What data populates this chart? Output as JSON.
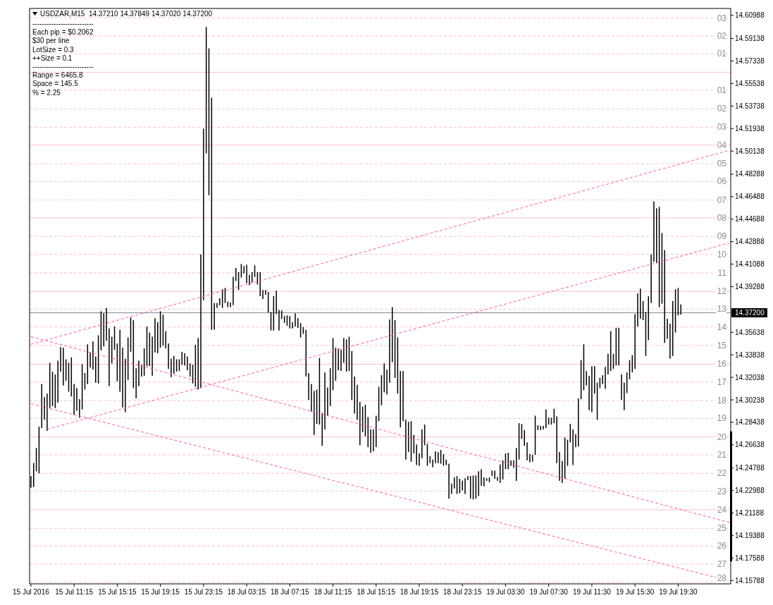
{
  "chart_data": {
    "type": "bar",
    "title": "USDZAR,M15  14.37210 14.37849 14.37020 14.37200",
    "annotations": [
      "--------------------------",
      "Each pip = $0.2062",
      "$30 per line",
      "LotSize = 0.3",
      "++Size = 0.1",
      "--------------------------",
      "Range = 6465.8",
      "Space = 145.5",
      "% = 2.25",
      {
        "text": "03",
        "y": 14.6077
      },
      {
        "text": "02",
        "y": 14.5934
      },
      {
        "text": "01",
        "y": 14.5792
      },
      {
        "text": "01",
        "y": 14.55
      },
      {
        "text": "02",
        "y": 14.5352
      },
      {
        "text": "03",
        "y": 14.5204
      },
      {
        "text": "04",
        "y": 14.5061
      },
      {
        "text": "05",
        "y": 14.4913
      },
      {
        "text": "06",
        "y": 14.477
      },
      {
        "text": "07",
        "y": 14.4622
      },
      {
        "text": "08",
        "y": 14.4479
      },
      {
        "text": "09",
        "y": 14.4331
      },
      {
        "text": "10",
        "y": 14.4188
      },
      {
        "text": "11",
        "y": 14.404
      },
      {
        "text": "12",
        "y": 14.3891
      },
      {
        "text": "13",
        "y": 14.3749
      },
      {
        "text": "14",
        "y": 14.3606
      },
      {
        "text": "15",
        "y": 14.3458
      },
      {
        "text": "16",
        "y": 14.3309
      },
      {
        "text": "17",
        "y": 14.3166
      },
      {
        "text": "18",
        "y": 14.3018
      },
      {
        "text": "19",
        "y": 14.2875
      },
      {
        "text": "20",
        "y": 14.2727
      },
      {
        "text": "21",
        "y": 14.2584
      },
      {
        "text": "22",
        "y": 14.2436
      },
      {
        "text": "23",
        "y": 14.2293
      },
      {
        "text": "24",
        "y": 14.2145
      },
      {
        "text": "25",
        "y": 14.1996
      },
      {
        "text": "26",
        "y": 14.1854
      },
      {
        "text": "27",
        "y": 14.1711
      },
      {
        "text": "28",
        "y": 14.1568
      }
    ],
    "categories": [
      "15 Jul 2016",
      null,
      null,
      null,
      null,
      null,
      null,
      null,
      null,
      null,
      null,
      null,
      null,
      null,
      null,
      null,
      "15 Jul 11:15",
      null,
      null,
      null,
      null,
      null,
      null,
      null,
      null,
      null,
      null,
      null,
      null,
      null,
      null,
      null,
      "15 Jul 15:15",
      null,
      null,
      null,
      null,
      null,
      null,
      null,
      null,
      null,
      null,
      null,
      null,
      null,
      null,
      null,
      "15 Jul 19:15",
      null,
      null,
      null,
      null,
      null,
      null,
      null,
      null,
      null,
      null,
      null,
      null,
      null,
      null,
      null,
      "15 Jul 23:15",
      null,
      null,
      null,
      null,
      null,
      null,
      null,
      null,
      null,
      null,
      null,
      null,
      null,
      null,
      null,
      "18 Jul 03:15",
      null,
      null,
      null,
      null,
      null,
      null,
      null,
      null,
      null,
      null,
      null,
      null,
      null,
      null,
      null,
      "18 Jul 07:15",
      null,
      null,
      null,
      null,
      null,
      null,
      null,
      null,
      null,
      null,
      null,
      null,
      null,
      null,
      null,
      "18 Jul 11:15",
      null,
      null,
      null,
      null,
      null,
      null,
      null,
      null,
      null,
      null,
      null,
      null,
      null,
      null,
      null,
      "18 Jul 15:15",
      null,
      null,
      null,
      null,
      null,
      null,
      null,
      null,
      null,
      null,
      null,
      null,
      null,
      null,
      null,
      "18 Jul 19:15",
      null,
      null,
      null,
      null,
      null,
      null,
      null,
      null,
      null,
      null,
      null,
      null,
      null,
      null,
      null,
      "18 Jul 23:15",
      null,
      null,
      null,
      null,
      null,
      null,
      null,
      null,
      null,
      null,
      null,
      null,
      null,
      null,
      null,
      "19 Jul 03:30",
      null,
      null,
      null,
      null,
      null,
      null,
      null,
      null,
      null,
      null,
      null,
      null,
      null,
      null,
      null,
      "19 Jul 07:30",
      null,
      null,
      null,
      null,
      null,
      null,
      null,
      null,
      null,
      null,
      null,
      null,
      null,
      null,
      null,
      "19 Jul 11:30",
      null,
      null,
      null,
      null,
      null,
      null,
      null,
      null,
      null,
      null,
      null,
      null,
      null,
      null,
      null,
      "19 Jul 15:30",
      null,
      null,
      null,
      null,
      null,
      null,
      null,
      null,
      null,
      null,
      null,
      null,
      null,
      null,
      null,
      "19 Jul 19:30",
      null,
      null,
      null,
      null,
      null,
      null,
      null,
      null,
      null,
      null,
      null,
      null,
      null,
      null,
      null,
      null,
      null,
      null,
      null
    ],
    "ylim": [
      14.1552,
      14.6154
    ],
    "yticks": [
      14.60988,
      14.59138,
      14.57338,
      14.55538,
      14.53738,
      14.51938,
      14.50138,
      14.48288,
      14.46488,
      14.44688,
      14.42888,
      14.41088,
      14.39288,
      14.35638,
      14.33838,
      14.32038,
      14.30238,
      14.28438,
      14.26638,
      14.24788,
      14.22988,
      14.21188,
      14.19388,
      14.17588,
      14.15788
    ],
    "series": [
      {
        "color": "#000000",
        "base": [
          14.2321,
          14.2326,
          14.2452,
          14.2436,
          14.2798,
          14.2864,
          14.2776,
          14.2958,
          14.2974,
          14.2958,
          14.3002,
          14.3249,
          14.3139,
          14.3177,
          14.3089,
          14.3051,
          14.2903,
          14.2936,
          14.2881,
          14.2947,
          14.3106,
          14.315,
          14.3282,
          14.3265,
          14.3161,
          14.3155,
          14.3419,
          14.3452,
          14.3496,
          14.3133,
          14.3315,
          14.3424,
          14.3172,
          14.3089,
          14.2963,
          14.2925,
          14.3183,
          14.3408,
          14.3117,
          14.3035,
          14.3133,
          14.321,
          14.3216,
          14.3293,
          14.3293,
          14.3216,
          14.3403,
          14.3397,
          14.3441,
          14.3457,
          14.3435,
          14.3271,
          14.3205,
          14.3232,
          14.3249,
          14.3254,
          14.3304,
          14.3298,
          14.326,
          14.321,
          14.3155,
          14.3128,
          14.3106,
          14.3117,
          14.382,
          14.4995,
          14.466,
          14.3584,
          14.3584,
          14.3759,
          14.3781,
          14.3759,
          14.3798,
          14.3765,
          14.3765,
          14.3781,
          14.3974,
          14.3902,
          14.4001,
          14.4034,
          14.3957,
          14.3941,
          14.3963,
          14.4007,
          14.3946,
          14.3853,
          14.3831,
          14.3864,
          14.3721,
          14.3578,
          14.3578,
          14.371,
          14.3578,
          14.3672,
          14.3639,
          14.3617,
          14.3595,
          14.3595,
          14.3611,
          14.36,
          14.3523,
          14.3551,
          14.321,
          14.3024,
          14.293,
          14.2743,
          14.2831,
          14.2826,
          14.2656,
          14.2787,
          14.2897,
          14.2974,
          14.31,
          14.3177,
          14.326,
          14.3254,
          14.332,
          14.3249,
          14.3254,
          14.3024,
          14.2914,
          14.2864,
          14.2661,
          14.2765,
          14.2732,
          14.2645,
          14.2601,
          14.2612,
          14.2645,
          14.2853,
          14.298,
          14.3084,
          14.3067,
          14.3161,
          14.3326,
          14.3199,
          14.3073,
          14.2804,
          14.2853,
          14.2546,
          14.2606,
          14.2529,
          14.2595,
          14.2502,
          14.2496,
          14.2557,
          14.2661,
          14.2496,
          14.2518,
          14.2485,
          14.2518,
          14.2518,
          14.2513,
          14.2496,
          14.2502,
          14.2233,
          14.2271,
          14.2315,
          14.2271,
          14.2277,
          14.2299,
          14.2271,
          14.2381,
          14.2233,
          14.2227,
          14.2233,
          14.2255,
          14.2337,
          14.2332,
          14.2376,
          14.2365,
          14.2414,
          14.2392,
          14.2376,
          14.2359,
          14.2386,
          14.2469,
          14.2469,
          14.2496,
          14.248,
          14.2376,
          14.2546,
          14.2711,
          14.2656,
          14.254,
          14.2524,
          14.2529,
          14.2584,
          14.2782,
          14.2782,
          14.2787,
          14.2798,
          14.2826,
          14.2826,
          14.2837,
          14.2518,
          14.2376,
          14.2359,
          14.2392,
          14.2496,
          14.2683,
          14.2502,
          14.2645,
          14.265,
          14.3029,
          14.31,
          14.3139,
          14.2941,
          14.2925,
          14.3073,
          14.2864,
          14.3117,
          14.315,
          14.3111,
          14.3227,
          14.3254,
          14.3271,
          14.3298,
          14.3298,
          14.3024,
          14.2941,
          14.3078,
          14.3188,
          14.3243,
          14.3271,
          14.3611,
          14.3672,
          14.3661,
          14.3375,
          14.3501,
          14.3798,
          14.4127,
          14.4116,
          14.3765,
          14.3792,
          14.3479,
          14.3512,
          14.3353,
          14.3375,
          14.3562,
          14.3699,
          14.3705,
          null,
          null,
          null,
          null,
          null,
          null,
          null,
          null,
          null,
          null,
          null,
          null,
          null,
          null,
          null,
          null,
          null,
          null
        ],
        "values": [
          0.0093,
          0.0192,
          0.0187,
          0.0373,
          0.0352,
          0.0182,
          0.0297,
          0.0362,
          0.0275,
          0.0269,
          0.0335,
          0.0197,
          0.0302,
          0.0171,
          0.0231,
          0.0313,
          0.0247,
          0.0181,
          0.0148,
          0.0362,
          0.0132,
          0.0318,
          0.0121,
          0.0225,
          0.0209,
          0.0385,
          0.0313,
          0.0264,
          0.0263,
          0.0462,
          0.0214,
          0.0187,
          0.0302,
          0.0495,
          0.0478,
          0.0428,
          0.034,
          0.0275,
          0.0544,
          0.0241,
          0.0204,
          0.0094,
          0.0219,
          0.0318,
          0.0269,
          0.0313,
          0.0274,
          0.0247,
          0.0291,
          0.0248,
          0.0138,
          0.0203,
          0.0148,
          0.0143,
          0.0099,
          0.0094,
          0.0104,
          0.0099,
          0.011,
          0.0105,
          0.0149,
          0.0335,
          0.0412,
          0.1071,
          0.1373,
          0.1011,
          0.1175,
          0.1856,
          0.0214,
          0.0039,
          0.0055,
          0.0149,
          0.0121,
          0.0044,
          0.0038,
          0.0226,
          0.0104,
          0.0143,
          0.011,
          0.006,
          0.0148,
          0.0082,
          0.0082,
          0.0093,
          0.0099,
          0.0192,
          0.0071,
          0.0038,
          0.0165,
          0.0149,
          0.0275,
          0.0187,
          0.0165,
          0.0066,
          0.0055,
          0.0082,
          0.0099,
          0.0049,
          0.0105,
          0.0077,
          0.0116,
          0.0055,
          0.0374,
          0.0214,
          0.022,
          0.0352,
          0.0275,
          0.0533,
          0.0263,
          0.0456,
          0.0225,
          0.0302,
          0.0418,
          0.0264,
          0.0175,
          0.017,
          0.0198,
          0.0258,
          0.0275,
          0.039,
          0.0296,
          0.028,
          0.0346,
          0.0204,
          0.0253,
          0.0241,
          0.0186,
          0.0175,
          0.0252,
          0.0275,
          0.0241,
          0.0231,
          0.0198,
          0.0505,
          0.0439,
          0.0462,
          0.045,
          0.045,
          0.0401,
          0.0318,
          0.0242,
          0.0324,
          0.0148,
          0.0165,
          0.0099,
          0.023,
          0.0165,
          0.0176,
          0.0055,
          0.0061,
          0.0094,
          0.0088,
          0.011,
          0.0094,
          0.0044,
          0.028,
          0.0083,
          0.0088,
          0.0143,
          0.0115,
          0.0077,
          0.0126,
          0.0033,
          0.0181,
          0.0192,
          0.0186,
          0.0197,
          0.0132,
          0.0071,
          0.0021,
          0.0038,
          0.0044,
          0.0066,
          0.0032,
          0.0148,
          0.0154,
          0.0126,
          0.0132,
          0.0044,
          0.006,
          0.0263,
          0.0291,
          0.012,
          0.0126,
          0.0143,
          0.0066,
          0.0055,
          0.0313,
          0.0038,
          0.0033,
          0.0028,
          0.0149,
          0.0055,
          0.0055,
          0.0115,
          0.0374,
          0.023,
          0.0176,
          0.033,
          0.0209,
          0.0148,
          0.0285,
          0.0104,
          0.0385,
          0.0313,
          0.0368,
          0.0115,
          0.0275,
          0.0368,
          0.022,
          0.0297,
          0.0082,
          0.0071,
          0.0176,
          0.0165,
          0.0319,
          0.0121,
          0.0302,
          0.0302,
          0.0203,
          0.022,
          0.0165,
          0.0154,
          0.0138,
          0.0439,
          0.0264,
          0.0241,
          0.0153,
          0.0352,
          0.0352,
          0.039,
          0.0484,
          0.044,
          0.0802,
          0.0566,
          0.0742,
          0.016,
          0.028,
          0.0439,
          0.0346,
          0.022,
          0.0082,
          null,
          null,
          null,
          null,
          null,
          null,
          null,
          null,
          null,
          null,
          null,
          null,
          null,
          null,
          null,
          null,
          null,
          null
        ]
      },
      {
        "type": "line",
        "color": "#ff5aa5",
        "line_style": "dashed",
        "values": [
          14.3468,
          null,
          null,
          null,
          null,
          null,
          null,
          null,
          null,
          null,
          null,
          null,
          null,
          null,
          null,
          null,
          null,
          null,
          null,
          null,
          null,
          null,
          null,
          null,
          null,
          null,
          null,
          null,
          null,
          null,
          null,
          null,
          null,
          null,
          null,
          null,
          null,
          null,
          null,
          null,
          null,
          null,
          null,
          null,
          null,
          null,
          null,
          null,
          null,
          null,
          null,
          null,
          null,
          null,
          null,
          null,
          null,
          null,
          null,
          null,
          null,
          null,
          null,
          null,
          null,
          null,
          null,
          null,
          null,
          null,
          null,
          null,
          null,
          null,
          null,
          null,
          null,
          null,
          null,
          null,
          null,
          null,
          null,
          null,
          null,
          null,
          null,
          null,
          null,
          null,
          null,
          null,
          null,
          null,
          null,
          null,
          null,
          null,
          null,
          null,
          null,
          null,
          null,
          null,
          null,
          null,
          null,
          null,
          null,
          null,
          null,
          null,
          null,
          null,
          null,
          null,
          null,
          null,
          null,
          null,
          null,
          null,
          null,
          null,
          null,
          null,
          null,
          null,
          null,
          null,
          null,
          null,
          null,
          null,
          null,
          null,
          null,
          null,
          null,
          null,
          null,
          null,
          null,
          null,
          null,
          null,
          null,
          null,
          null,
          null,
          null,
          null,
          null,
          null,
          null,
          null,
          null,
          null,
          null,
          null,
          null,
          null,
          null,
          null,
          null,
          null,
          null,
          null,
          null,
          null,
          null,
          null,
          null,
          null,
          null,
          null,
          null,
          null,
          null,
          null,
          null,
          null,
          null,
          null,
          null,
          null,
          null,
          null,
          null,
          null,
          null,
          null,
          null,
          null,
          null,
          null,
          null,
          null,
          null,
          null,
          null,
          null,
          null,
          null,
          null,
          null,
          null,
          null,
          null,
          null,
          null,
          null,
          null,
          null,
          null,
          null,
          null,
          null,
          null,
          null,
          null,
          null,
          null,
          null,
          null,
          null,
          null,
          null,
          null,
          null,
          null,
          null,
          null,
          null,
          null,
          null,
          null,
          null,
          null,
          null,
          null,
          null,
          null,
          null,
          null,
          null,
          null,
          null,
          null,
          null,
          null,
          null,
          null,
          null,
          null,
          null,
          null,
          null,
          null,
          14.502
        ]
      },
      {
        "type": "line",
        "color": "#ff5aa5",
        "line_style": "dashed",
        "values": [
          null,
          null,
          null,
          null,
          null,
          null,
          14.2788,
          null,
          null,
          null,
          null,
          null,
          null,
          null,
          null,
          null,
          null,
          null,
          null,
          null,
          null,
          null,
          null,
          null,
          null,
          null,
          null,
          null,
          null,
          null,
          null,
          null,
          null,
          null,
          null,
          null,
          null,
          null,
          null,
          null,
          null,
          null,
          null,
          null,
          null,
          null,
          null,
          null,
          null,
          null,
          null,
          null,
          null,
          null,
          null,
          null,
          null,
          null,
          null,
          null,
          null,
          null,
          null,
          null,
          null,
          null,
          null,
          null,
          null,
          null,
          null,
          null,
          null,
          null,
          null,
          null,
          null,
          null,
          null,
          null,
          null,
          null,
          null,
          null,
          null,
          null,
          null,
          null,
          null,
          null,
          null,
          null,
          null,
          null,
          null,
          null,
          null,
          null,
          null,
          null,
          null,
          null,
          null,
          null,
          null,
          null,
          null,
          null,
          null,
          null,
          null,
          null,
          null,
          null,
          null,
          null,
          null,
          null,
          null,
          null,
          null,
          null,
          null,
          null,
          null,
          null,
          null,
          null,
          null,
          null,
          null,
          null,
          null,
          null,
          null,
          null,
          null,
          null,
          null,
          null,
          null,
          null,
          null,
          null,
          null,
          null,
          null,
          null,
          null,
          null,
          null,
          null,
          null,
          null,
          null,
          null,
          null,
          null,
          null,
          null,
          null,
          null,
          null,
          null,
          null,
          null,
          null,
          null,
          null,
          null,
          null,
          null,
          null,
          null,
          null,
          null,
          null,
          null,
          null,
          null,
          null,
          null,
          null,
          null,
          null,
          null,
          null,
          null,
          null,
          null,
          null,
          null,
          null,
          null,
          null,
          null,
          null,
          null,
          null,
          null,
          null,
          null,
          null,
          null,
          null,
          null,
          null,
          null,
          null,
          null,
          null,
          null,
          null,
          null,
          null,
          null,
          null,
          null,
          null,
          null,
          null,
          null,
          null,
          null,
          null,
          null,
          null,
          null,
          null,
          null,
          null,
          null,
          null,
          null,
          null,
          null,
          null,
          null,
          null,
          null,
          null,
          null,
          null,
          null,
          null,
          null,
          null,
          null,
          null,
          null,
          null,
          null,
          null,
          null,
          null,
          null,
          null,
          null,
          null,
          14.4279
        ]
      },
      {
        "type": "line",
        "color": "#ff5aa5",
        "line_style": "dashed",
        "values": [
          14.3529,
          null,
          null,
          null,
          null,
          null,
          null,
          null,
          null,
          null,
          null,
          null,
          null,
          null,
          null,
          null,
          null,
          null,
          null,
          null,
          null,
          null,
          null,
          null,
          null,
          null,
          null,
          null,
          null,
          null,
          null,
          null,
          null,
          null,
          null,
          null,
          null,
          null,
          null,
          null,
          null,
          null,
          null,
          null,
          null,
          null,
          null,
          null,
          null,
          null,
          null,
          null,
          null,
          null,
          null,
          null,
          null,
          null,
          null,
          null,
          null,
          null,
          null,
          null,
          null,
          null,
          null,
          null,
          null,
          null,
          null,
          null,
          null,
          null,
          null,
          null,
          null,
          null,
          null,
          null,
          null,
          null,
          null,
          null,
          null,
          null,
          null,
          null,
          null,
          null,
          null,
          null,
          null,
          null,
          null,
          null,
          null,
          null,
          null,
          null,
          null,
          null,
          null,
          null,
          null,
          null,
          null,
          null,
          null,
          null,
          null,
          null,
          null,
          null,
          null,
          null,
          null,
          null,
          null,
          null,
          null,
          null,
          null,
          null,
          null,
          null,
          null,
          null,
          null,
          null,
          null,
          null,
          null,
          null,
          null,
          null,
          null,
          null,
          null,
          null,
          null,
          null,
          null,
          null,
          null,
          null,
          null,
          null,
          null,
          null,
          null,
          null,
          null,
          null,
          null,
          null,
          null,
          null,
          null,
          null,
          null,
          null,
          null,
          null,
          null,
          null,
          null,
          null,
          null,
          null,
          null,
          null,
          null,
          null,
          null,
          null,
          null,
          null,
          null,
          null,
          null,
          null,
          null,
          null,
          null,
          null,
          null,
          null,
          null,
          null,
          null,
          null,
          null,
          null,
          null,
          null,
          null,
          null,
          null,
          null,
          null,
          null,
          null,
          null,
          null,
          null,
          null,
          null,
          null,
          null,
          null,
          null,
          null,
          null,
          null,
          null,
          null,
          null,
          null,
          null,
          null,
          null,
          null,
          null,
          null,
          null,
          null,
          null,
          null,
          null,
          null,
          null,
          null,
          null,
          null,
          null,
          null,
          null,
          null,
          null,
          null,
          null,
          null,
          null,
          null,
          null,
          null,
          null,
          null,
          null,
          null,
          null,
          null,
          null,
          null,
          null,
          null,
          null,
          null,
          14.2043
        ]
      },
      {
        "type": "line",
        "color": "#ff5aa5",
        "line_style": "dashed",
        "values": [
          14.2992,
          null,
          null,
          null,
          null,
          null,
          null,
          null,
          null,
          null,
          null,
          null,
          null,
          null,
          null,
          null,
          null,
          null,
          null,
          null,
          null,
          null,
          null,
          null,
          null,
          null,
          null,
          null,
          null,
          null,
          null,
          null,
          null,
          null,
          null,
          null,
          null,
          null,
          null,
          null,
          null,
          null,
          null,
          null,
          null,
          null,
          null,
          null,
          null,
          null,
          null,
          null,
          null,
          null,
          null,
          null,
          null,
          null,
          null,
          null,
          null,
          null,
          null,
          null,
          null,
          null,
          null,
          null,
          null,
          null,
          null,
          null,
          null,
          null,
          null,
          null,
          null,
          null,
          null,
          null,
          null,
          null,
          null,
          null,
          null,
          null,
          null,
          null,
          null,
          null,
          null,
          null,
          null,
          null,
          null,
          null,
          null,
          null,
          null,
          null,
          null,
          null,
          null,
          null,
          null,
          null,
          null,
          null,
          null,
          null,
          null,
          null,
          null,
          null,
          null,
          null,
          null,
          null,
          null,
          null,
          null,
          null,
          null,
          null,
          null,
          null,
          null,
          null,
          null,
          null,
          null,
          null,
          null,
          null,
          null,
          null,
          null,
          null,
          null,
          null,
          null,
          null,
          null,
          null,
          null,
          null,
          null,
          null,
          null,
          null,
          null,
          null,
          null,
          null,
          null,
          null,
          null,
          null,
          null,
          null,
          null,
          null,
          null,
          null,
          null,
          null,
          null,
          null,
          null,
          null,
          null,
          null,
          null,
          null,
          null,
          null,
          null,
          null,
          null,
          null,
          null,
          null,
          null,
          null,
          null,
          null,
          null,
          null,
          null,
          null,
          null,
          null,
          null,
          null,
          null,
          null,
          null,
          null,
          null,
          null,
          null,
          null,
          null,
          null,
          null,
          null,
          null,
          null,
          null,
          null,
          null,
          null,
          null,
          null,
          null,
          null,
          null,
          null,
          null,
          null,
          null,
          null,
          null,
          null,
          null,
          null,
          null,
          null,
          null,
          null,
          null,
          null,
          null,
          null,
          null,
          null,
          null,
          null,
          null,
          null,
          null,
          null,
          null,
          null,
          null,
          null,
          null,
          null,
          null,
          null,
          null,
          null,
          null,
          null,
          null,
          null,
          null,
          null,
          null,
          14.1576
        ]
      }
    ],
    "ref_lines": [
      {
        "axis": "y",
        "value": 14.372,
        "label": "14.37200",
        "color": "#7f8790",
        "line_style": "solid"
      },
      {
        "axis": "y",
        "value": 14.6077,
        "color": "#ffc0cb",
        "line_style": "dashed"
      },
      {
        "axis": "y",
        "value": 14.5934,
        "color": "#ffc0cb",
        "line_style": "dashed"
      },
      {
        "axis": "y",
        "value": 14.5792,
        "color": "#ffc0cb",
        "line_style": "dashed"
      },
      {
        "axis": "y",
        "value": 14.5643,
        "color": "#ffc0cb",
        "line_style": "solid"
      },
      {
        "axis": "y",
        "value": 14.55,
        "color": "#ffc0cb",
        "line_style": "dashed"
      },
      {
        "axis": "y",
        "value": 14.5352,
        "color": "#ffc0cb",
        "line_style": "dashed"
      },
      {
        "axis": "y",
        "value": 14.5204,
        "color": "#ffc0cb",
        "line_style": "dashed"
      },
      {
        "axis": "y",
        "value": 14.5061,
        "color": "#ffc0cb",
        "line_style": "solid"
      },
      {
        "axis": "y",
        "value": 14.4913,
        "color": "#ffc0cb",
        "line_style": "dashed"
      },
      {
        "axis": "y",
        "value": 14.477,
        "color": "#ffc0cb",
        "line_style": "dashed"
      },
      {
        "axis": "y",
        "value": 14.4622,
        "color": "#ffc0cb",
        "line_style": "dashed"
      },
      {
        "axis": "y",
        "value": 14.4479,
        "color": "#ffc0cb",
        "line_style": "solid"
      },
      {
        "axis": "y",
        "value": 14.4331,
        "color": "#ffc0cb",
        "line_style": "dashed"
      },
      {
        "axis": "y",
        "value": 14.4188,
        "color": "#ffc0cb",
        "line_style": "dashed"
      },
      {
        "axis": "y",
        "value": 14.404,
        "color": "#ffc0cb",
        "line_style": "dashed"
      },
      {
        "axis": "y",
        "value": 14.3891,
        "color": "#ffc0cb",
        "line_style": "solid"
      },
      {
        "axis": "y",
        "value": 14.3749,
        "color": "#ffc0cb",
        "line_style": "dashed"
      },
      {
        "axis": "y",
        "value": 14.3606,
        "color": "#ffc0cb",
        "line_style": "dashed"
      },
      {
        "axis": "y",
        "value": 14.3458,
        "color": "#ffc0cb",
        "line_style": "dashed"
      },
      {
        "axis": "y",
        "value": 14.3309,
        "color": "#ffc0cb",
        "line_style": "solid"
      },
      {
        "axis": "y",
        "value": 14.3166,
        "color": "#ffc0cb",
        "line_style": "dashed"
      },
      {
        "axis": "y",
        "value": 14.3018,
        "color": "#ffc0cb",
        "line_style": "dashed"
      },
      {
        "axis": "y",
        "value": 14.2875,
        "color": "#ffc0cb",
        "line_style": "dashed"
      },
      {
        "axis": "y",
        "value": 14.2727,
        "color": "#ffc0cb",
        "line_style": "solid"
      },
      {
        "axis": "y",
        "value": 14.2584,
        "color": "#ffc0cb",
        "line_style": "dashed"
      },
      {
        "axis": "y",
        "value": 14.2436,
        "color": "#ffc0cb",
        "line_style": "dashed"
      },
      {
        "axis": "y",
        "value": 14.2293,
        "color": "#ffc0cb",
        "line_style": "dashed"
      },
      {
        "axis": "y",
        "value": 14.2145,
        "color": "#ffc0cb",
        "line_style": "solid"
      },
      {
        "axis": "y",
        "value": 14.1996,
        "color": "#ffc0cb",
        "line_style": "dashed"
      },
      {
        "axis": "y",
        "value": 14.1854,
        "color": "#ffc0cb",
        "line_style": "dashed"
      },
      {
        "axis": "y",
        "value": 14.1711,
        "color": "#ffc0cb",
        "line_style": "dashed"
      },
      {
        "axis": "y",
        "value": 14.1568,
        "color": "#ffc0cb",
        "line_style": "dashed"
      }
    ]
  }
}
